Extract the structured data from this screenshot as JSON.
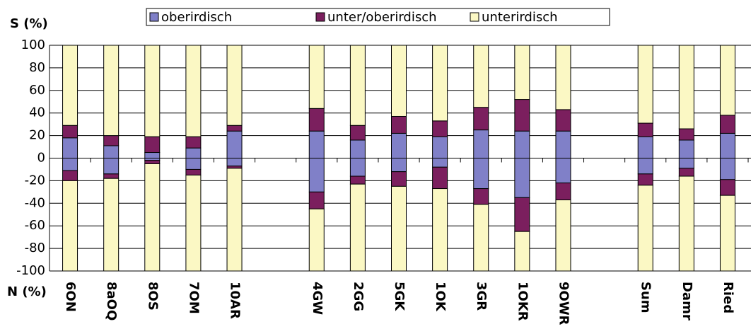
{
  "chart_data": {
    "type": "bar",
    "stacked": true,
    "y_title": "S (%)",
    "x_title": "N (%)",
    "categories": [
      "6ON",
      "8aOQ",
      "8OS",
      "7OM",
      "10AR",
      null,
      "4GW",
      "2GG",
      "5GK",
      "1OK",
      "3GR",
      "1OKR",
      "9OWR",
      null,
      "Sum",
      "Damr",
      "Ried"
    ],
    "series": [
      {
        "name": "oberirdisch",
        "color": "#8080c8",
        "values": [
          18,
          11,
          5,
          9,
          24,
          null,
          24,
          16,
          22,
          19,
          25,
          24,
          24,
          null,
          19,
          16,
          22
        ],
        "values_below": [
          -11,
          -14,
          -2,
          -10,
          -7,
          null,
          -30,
          -16,
          -12,
          -8,
          -27,
          -35,
          -22,
          null,
          -14,
          -9,
          -19
        ]
      },
      {
        "name": "unter/oberirdisch",
        "color": "#7b1f5e",
        "values": [
          11,
          9,
          14,
          10,
          5,
          null,
          20,
          13,
          15,
          14,
          20,
          28,
          19,
          null,
          12,
          10,
          16
        ],
        "values_below": [
          -9,
          -4,
          -3,
          -5,
          -2,
          null,
          -15,
          -7,
          -13,
          -19,
          -14,
          -30,
          -15,
          null,
          -10,
          -7,
          -14
        ]
      },
      {
        "name": "unterirdisch",
        "color": "#fbf8c4",
        "values": [
          71,
          80,
          81,
          81,
          71,
          null,
          56,
          71,
          63,
          67,
          55,
          48,
          57,
          null,
          69,
          74,
          62
        ],
        "values_below": [
          -80,
          -82,
          -95,
          -85,
          -91,
          null,
          -55,
          -77,
          -75,
          -73,
          -59,
          -35,
          -63,
          null,
          -76,
          -84,
          -67
        ]
      }
    ],
    "ylim": [
      -100,
      100
    ],
    "yticks": [
      -100,
      -80,
      -60,
      -40,
      -20,
      0,
      20,
      40,
      60,
      80,
      100
    ],
    "grid": true
  }
}
